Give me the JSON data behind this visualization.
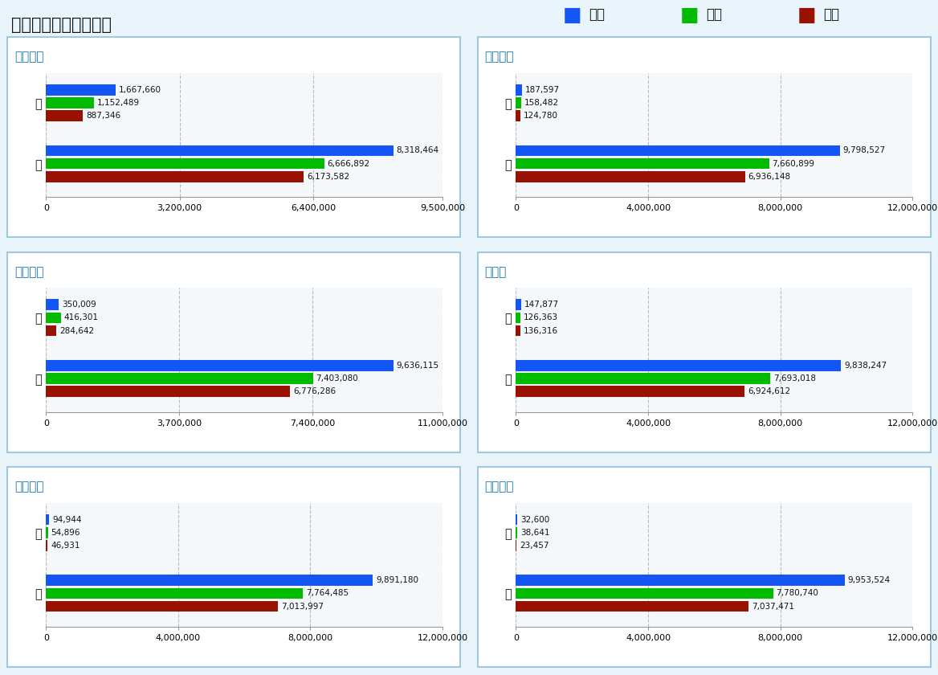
{
  "title": "基础资质和招聘检测：",
  "legend_labels": [
    "河南",
    "湖北",
    "湖南"
  ],
  "colors": [
    "#1455f5",
    "#00bb00",
    "#991100"
  ],
  "panels": [
    {
      "title": "行政许可",
      "categories": [
        "有",
        "无"
      ],
      "values_he": [
        1667660,
        8318464
      ],
      "values_hu_bei": [
        1152489,
        6666892
      ],
      "values_hu_nan": [
        887346,
        6173582
      ],
      "xlim": 9500000,
      "xticks": [
        0,
        3200000,
        6400000,
        9500000
      ],
      "xtick_labels": [
        "0",
        "3,200,000",
        "6,400,000",
        "9,500,000"
      ]
    },
    {
      "title": "招聘信息",
      "categories": [
        "有",
        "无"
      ],
      "values_he": [
        187597,
        9798527
      ],
      "values_hu_bei": [
        158482,
        7660899
      ],
      "values_hu_nan": [
        124780,
        6936148
      ],
      "xlim": 12000000,
      "xticks": [
        0,
        4000000,
        8000000,
        12000000
      ],
      "xtick_labels": [
        "0",
        "4,000,000",
        "8,000,000",
        "12,000,000"
      ]
    },
    {
      "title": "资质证书",
      "categories": [
        "有",
        "无"
      ],
      "values_he": [
        350009,
        9636115
      ],
      "values_hu_bei": [
        416301,
        7403080
      ],
      "values_hu_nan": [
        284642,
        6776286
      ],
      "xlim": 11000000,
      "xticks": [
        0,
        3700000,
        7400000,
        11000000
      ],
      "xtick_labels": [
        "0",
        "3,700,000",
        "7,400,000",
        "11,000,000"
      ]
    },
    {
      "title": "招投标",
      "categories": [
        "有",
        "无"
      ],
      "values_he": [
        147877,
        9838247
      ],
      "values_hu_bei": [
        126363,
        7693018
      ],
      "values_hu_nan": [
        136316,
        6924612
      ],
      "xlim": 12000000,
      "xticks": [
        0,
        4000000,
        8000000,
        12000000
      ],
      "xtick_labels": [
        "0",
        "4,000,000",
        "8,000,000",
        "12,000,000"
      ]
    },
    {
      "title": "网站备案",
      "categories": [
        "有",
        "无"
      ],
      "values_he": [
        94944,
        9891180
      ],
      "values_hu_bei": [
        54896,
        7764485
      ],
      "values_hu_nan": [
        46931,
        7013997
      ],
      "xlim": 12000000,
      "xticks": [
        0,
        4000000,
        8000000,
        12000000
      ],
      "xtick_labels": [
        "0",
        "4,000,000",
        "8,000,000",
        "12,000,000"
      ]
    },
    {
      "title": "购地信息",
      "categories": [
        "有",
        "无"
      ],
      "values_he": [
        32600,
        9953524
      ],
      "values_hu_bei": [
        38641,
        7780740
      ],
      "values_hu_nan": [
        23457,
        7037471
      ],
      "xlim": 12000000,
      "xticks": [
        0,
        4000000,
        8000000,
        12000000
      ],
      "xtick_labels": [
        "0",
        "4,000,000",
        "8,000,000",
        "12,000,000"
      ]
    }
  ],
  "bg_color": "#eaf4fb",
  "panel_bg": "#ffffff",
  "panel_border": "#a0c8e0",
  "title_color": "#1a7ab5",
  "chart_bg": "#f4f8fb"
}
